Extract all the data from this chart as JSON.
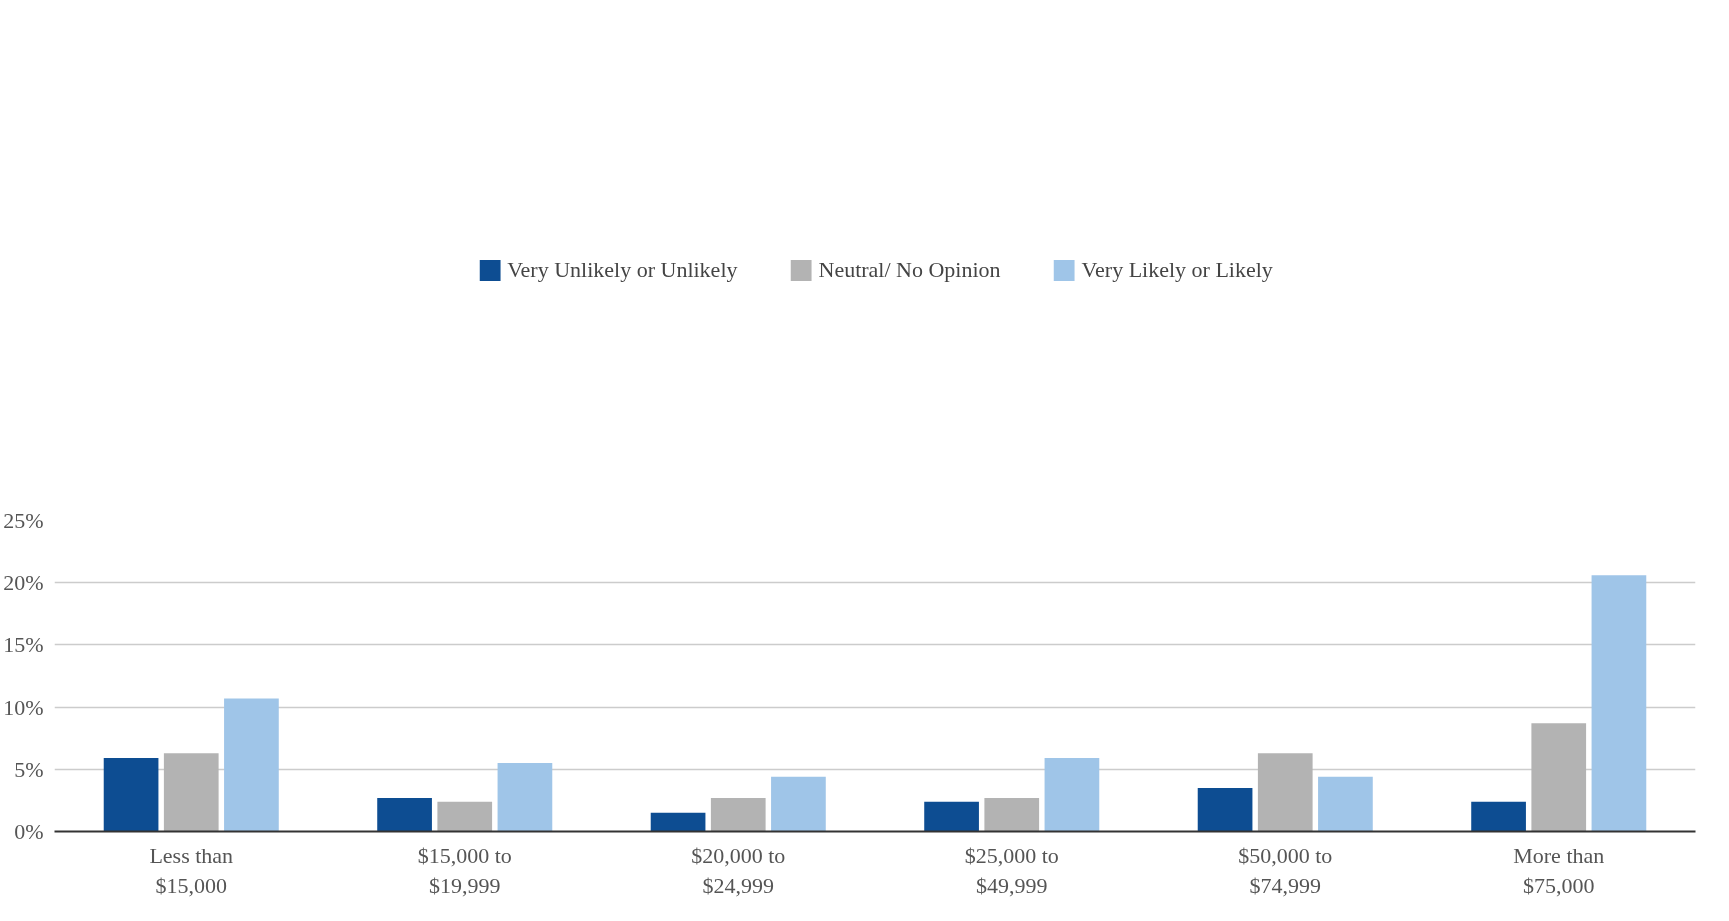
{
  "chart_data": {
    "type": "bar",
    "categories": [
      "Less than $15,000",
      "$15,000 to $19,999",
      "$20,000 to $24,999",
      "$25,000 to $49,999",
      "$50,000 to $74,999",
      "More than $75,000"
    ],
    "series": [
      {
        "name": "Very Unlikely or Unlikely",
        "color": "#0d4d92",
        "values": [
          5.9,
          2.7,
          1.5,
          2.4,
          3.5,
          2.4
        ]
      },
      {
        "name": "Neutral/ No Opinion",
        "color": "#b3b3b3",
        "values": [
          6.3,
          2.4,
          2.7,
          2.7,
          6.3,
          8.7
        ]
      },
      {
        "name": "Very Likely or Likely",
        "color": "#9fc5e8",
        "values": [
          10.7,
          5.5,
          4.4,
          5.9,
          4.4,
          20.6
        ]
      }
    ],
    "ylim": [
      0,
      25
    ],
    "yticks": [
      {
        "value": 0,
        "label": "0%"
      },
      {
        "value": 5,
        "label": "5%"
      },
      {
        "value": 10,
        "label": "10%"
      },
      {
        "value": 15,
        "label": "15%"
      },
      {
        "value": 20,
        "label": "20%"
      },
      {
        "value": 25,
        "label": "25%"
      }
    ],
    "grid": "y",
    "legend": "top"
  }
}
